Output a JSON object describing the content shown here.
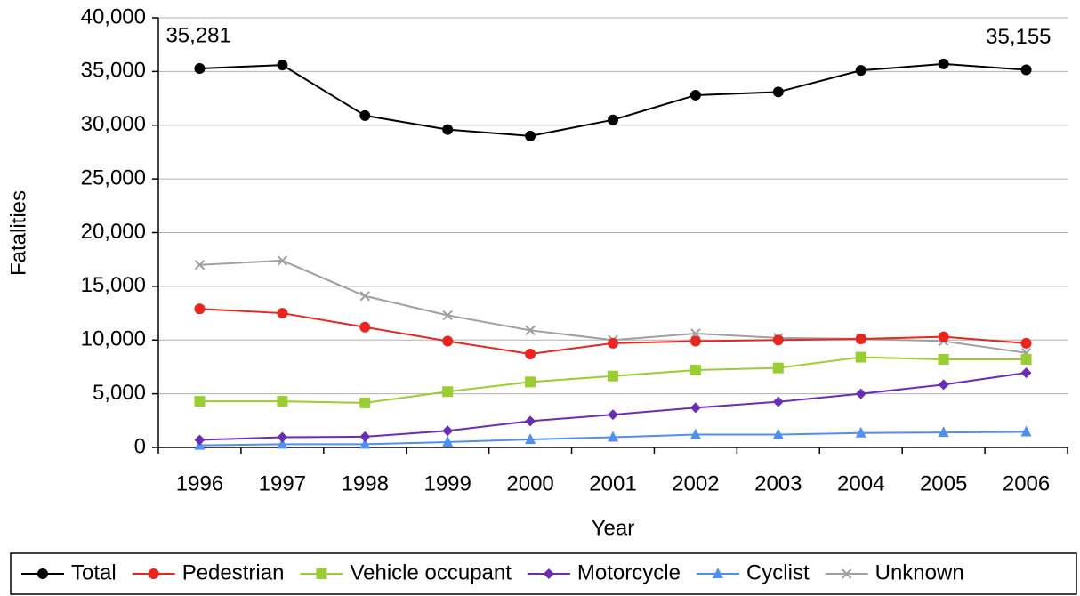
{
  "chart_data": {
    "type": "line",
    "x_label": "Year",
    "y_label": "Fatalities",
    "categories": [
      "1996",
      "1997",
      "1998",
      "1999",
      "2000",
      "2001",
      "2002",
      "2003",
      "2004",
      "2005",
      "2006"
    ],
    "series": [
      {
        "name": "Total",
        "color": "#000000",
        "marker": "circle",
        "values": [
          35281,
          35600,
          30900,
          29600,
          29000,
          30500,
          32800,
          33100,
          35100,
          35700,
          35155
        ],
        "value_labels": [
          "35,281",
          null,
          null,
          null,
          null,
          null,
          null,
          null,
          null,
          null,
          "35,155"
        ]
      },
      {
        "name": "Pedestrian",
        "color": "#e8251f",
        "marker": "circle",
        "values": [
          12900,
          12500,
          11200,
          9900,
          8700,
          9700,
          9900,
          10000,
          10100,
          10300,
          9700
        ]
      },
      {
        "name": "Vehicle occupant",
        "color": "#9acd32",
        "marker": "square",
        "values": [
          4300,
          4300,
          4150,
          5200,
          6100,
          6650,
          7200,
          7400,
          8400,
          8200,
          8200
        ]
      },
      {
        "name": "Motorcycle",
        "color": "#6a2eb5",
        "marker": "diamond",
        "values": [
          700,
          950,
          1000,
          1550,
          2450,
          3050,
          3700,
          4250,
          5000,
          5850,
          6950
        ]
      },
      {
        "name": "Cyclist",
        "color": "#4f8ff0",
        "marker": "triangle",
        "values": [
          200,
          300,
          300,
          500,
          750,
          950,
          1200,
          1200,
          1350,
          1400,
          1450
        ]
      },
      {
        "name": "Unknown",
        "color": "#a0a0a0",
        "marker": "x",
        "values": [
          17000,
          17400,
          14100,
          12300,
          10900,
          10000,
          10600,
          10200,
          10100,
          9900,
          8800
        ]
      }
    ],
    "ylim": [
      0,
      40000
    ],
    "yticks": [
      0,
      {
        "value": 5000,
        "label": "5,000"
      },
      {
        "value": 10000,
        "label": "10,000"
      },
      {
        "value": 15000,
        "label": "15,000"
      },
      {
        "value": 20000,
        "label": "20,000"
      },
      {
        "value": 25000,
        "label": "25,000"
      },
      {
        "value": 30000,
        "label": "30,000"
      },
      {
        "value": 35000,
        "label": "35,000"
      },
      {
        "value": 40000,
        "label": "40,000"
      }
    ],
    "grid": true,
    "legend": "bottom"
  }
}
